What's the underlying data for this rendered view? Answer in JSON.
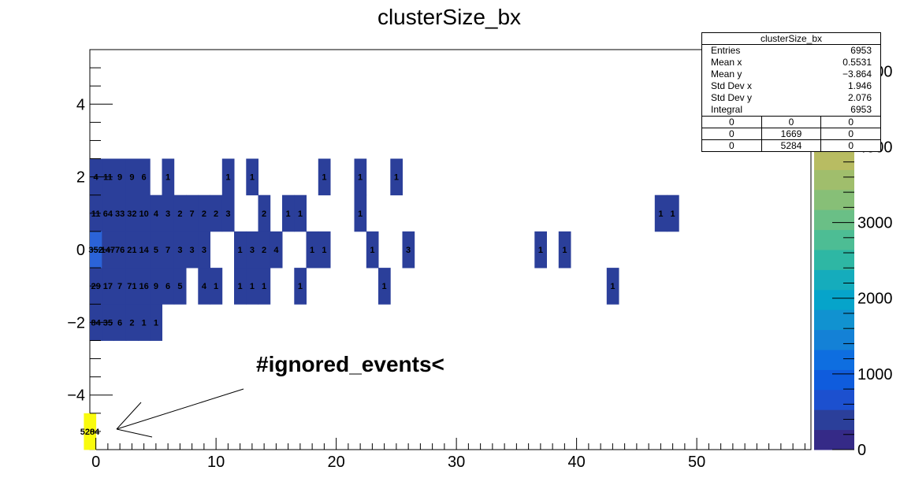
{
  "chart_data": {
    "type": "heatmap",
    "title": "clusterSize_bx",
    "xlabel": "",
    "ylabel": "",
    "xlim": [
      -0.5,
      59.5
    ],
    "ylim": [
      -5.5,
      5.5
    ],
    "xticks": [
      "0",
      "10",
      "20",
      "30",
      "40",
      "50"
    ],
    "yticks": [
      "−4",
      "−2",
      "0",
      "2",
      "4"
    ],
    "zticks": [
      "0",
      "1000",
      "2000",
      "3000",
      "4000",
      "5000"
    ],
    "zlim": [
      0,
      5284
    ],
    "cells": [
      {
        "x": 0,
        "y": 2,
        "label": "4",
        "v": 4
      },
      {
        "x": 1,
        "y": 2,
        "label": "11",
        "v": 11
      },
      {
        "x": 2,
        "y": 2,
        "label": "9",
        "v": 9
      },
      {
        "x": 3,
        "y": 2,
        "label": "9",
        "v": 9
      },
      {
        "x": 4,
        "y": 2,
        "label": "6",
        "v": 6
      },
      {
        "x": 6,
        "y": 2,
        "label": "1",
        "v": 1
      },
      {
        "x": 11,
        "y": 2,
        "label": "1",
        "v": 1
      },
      {
        "x": 13,
        "y": 2,
        "label": "1",
        "v": 1
      },
      {
        "x": 19,
        "y": 2,
        "label": "1",
        "v": 1
      },
      {
        "x": 22,
        "y": 2,
        "label": "1",
        "v": 1
      },
      {
        "x": 25,
        "y": 2,
        "label": "1",
        "v": 1
      },
      {
        "x": 0,
        "y": 1,
        "label": "11",
        "v": 11
      },
      {
        "x": 1,
        "y": 1,
        "label": "64",
        "v": 64
      },
      {
        "x": 2,
        "y": 1,
        "label": "33",
        "v": 33
      },
      {
        "x": 3,
        "y": 1,
        "label": "32",
        "v": 32
      },
      {
        "x": 4,
        "y": 1,
        "label": "10",
        "v": 10
      },
      {
        "x": 5,
        "y": 1,
        "label": "4",
        "v": 4
      },
      {
        "x": 6,
        "y": 1,
        "label": "3",
        "v": 3
      },
      {
        "x": 7,
        "y": 1,
        "label": "2",
        "v": 2
      },
      {
        "x": 8,
        "y": 1,
        "label": "7",
        "v": 7
      },
      {
        "x": 9,
        "y": 1,
        "label": "2",
        "v": 2
      },
      {
        "x": 10,
        "y": 1,
        "label": "2",
        "v": 2
      },
      {
        "x": 11,
        "y": 1,
        "label": "3",
        "v": 3
      },
      {
        "x": 14,
        "y": 1,
        "label": "2",
        "v": 2
      },
      {
        "x": 16,
        "y": 1,
        "label": "1",
        "v": 1
      },
      {
        "x": 17,
        "y": 1,
        "label": "1",
        "v": 1
      },
      {
        "x": 22,
        "y": 1,
        "label": "1",
        "v": 1
      },
      {
        "x": 47,
        "y": 1,
        "label": "1",
        "v": 1
      },
      {
        "x": 48,
        "y": 1,
        "label": "1",
        "v": 1
      },
      {
        "x": 0,
        "y": 0,
        "label": "352",
        "v": 352
      },
      {
        "x": 1,
        "y": 0,
        "label": "147",
        "v": 147
      },
      {
        "x": 2,
        "y": 0,
        "label": "76",
        "v": 76
      },
      {
        "x": 3,
        "y": 0,
        "label": "21",
        "v": 21
      },
      {
        "x": 4,
        "y": 0,
        "label": "14",
        "v": 14
      },
      {
        "x": 5,
        "y": 0,
        "label": "5",
        "v": 5
      },
      {
        "x": 6,
        "y": 0,
        "label": "7",
        "v": 7
      },
      {
        "x": 7,
        "y": 0,
        "label": "3",
        "v": 3
      },
      {
        "x": 8,
        "y": 0,
        "label": "3",
        "v": 3
      },
      {
        "x": 9,
        "y": 0,
        "label": "3",
        "v": 3
      },
      {
        "x": 12,
        "y": 0,
        "label": "1",
        "v": 1
      },
      {
        "x": 13,
        "y": 0,
        "label": "3",
        "v": 3
      },
      {
        "x": 14,
        "y": 0,
        "label": "2",
        "v": 2
      },
      {
        "x": 15,
        "y": 0,
        "label": "4",
        "v": 4
      },
      {
        "x": 18,
        "y": 0,
        "label": "1",
        "v": 1
      },
      {
        "x": 19,
        "y": 0,
        "label": "1",
        "v": 1
      },
      {
        "x": 23,
        "y": 0,
        "label": "1",
        "v": 1
      },
      {
        "x": 26,
        "y": 0,
        "label": "3",
        "v": 3
      },
      {
        "x": 37,
        "y": 0,
        "label": "1",
        "v": 1
      },
      {
        "x": 39,
        "y": 0,
        "label": "1",
        "v": 1
      },
      {
        "x": 0,
        "y": -1,
        "label": "29",
        "v": 29
      },
      {
        "x": 1,
        "y": -1,
        "label": "17",
        "v": 17
      },
      {
        "x": 2,
        "y": -1,
        "label": "7",
        "v": 7
      },
      {
        "x": 3,
        "y": -1,
        "label": "71",
        "v": 71
      },
      {
        "x": 4,
        "y": -1,
        "label": "16",
        "v": 16
      },
      {
        "x": 5,
        "y": -1,
        "label": "9",
        "v": 9
      },
      {
        "x": 6,
        "y": -1,
        "label": "6",
        "v": 6
      },
      {
        "x": 7,
        "y": -1,
        "label": "5",
        "v": 5
      },
      {
        "x": 9,
        "y": -1,
        "label": "4",
        "v": 4
      },
      {
        "x": 10,
        "y": -1,
        "label": "1",
        "v": 1
      },
      {
        "x": 12,
        "y": -1,
        "label": "1",
        "v": 1
      },
      {
        "x": 13,
        "y": -1,
        "label": "1",
        "v": 1
      },
      {
        "x": 14,
        "y": -1,
        "label": "1",
        "v": 1
      },
      {
        "x": 17,
        "y": -1,
        "label": "1",
        "v": 1
      },
      {
        "x": 24,
        "y": -1,
        "label": "1",
        "v": 1
      },
      {
        "x": 43,
        "y": -1,
        "label": "1",
        "v": 1
      },
      {
        "x": 0,
        "y": -2,
        "label": "84",
        "v": 84
      },
      {
        "x": 1,
        "y": -2,
        "label": "35",
        "v": 35
      },
      {
        "x": 2,
        "y": -2,
        "label": "6",
        "v": 6
      },
      {
        "x": 3,
        "y": -2,
        "label": "2",
        "v": 2
      },
      {
        "x": 4,
        "y": -2,
        "label": "1",
        "v": 1
      },
      {
        "x": 5,
        "y": -2,
        "label": "1",
        "v": 1
      },
      {
        "x": -0.5,
        "y": -5,
        "label": "5284",
        "v": 5284
      }
    ],
    "annotation": "#ignored_events<",
    "stats": {
      "title": "clusterSize_bx",
      "rows": [
        {
          "label": "Entries",
          "value": "6953"
        },
        {
          "label": "Mean x",
          "value": "0.5531"
        },
        {
          "label": "Mean y",
          "value": "−3.864"
        },
        {
          "label": "Std Dev x",
          "value": "1.946"
        },
        {
          "label": "Std Dev y",
          "value": "2.076"
        },
        {
          "label": "Integral",
          "value": "6953"
        }
      ],
      "grid": [
        [
          "0",
          "0",
          "0"
        ],
        [
          "0",
          "1669",
          "0"
        ],
        [
          "0",
          "5284",
          "0"
        ]
      ]
    },
    "palette": [
      "#352a87",
      "#2b3f9a",
      "#0f5cdd",
      "#1481d6",
      "#06a4ca",
      "#2eb7a4",
      "#87bf77",
      "#d1bb59",
      "#fec832",
      "#f9fb0e"
    ]
  }
}
